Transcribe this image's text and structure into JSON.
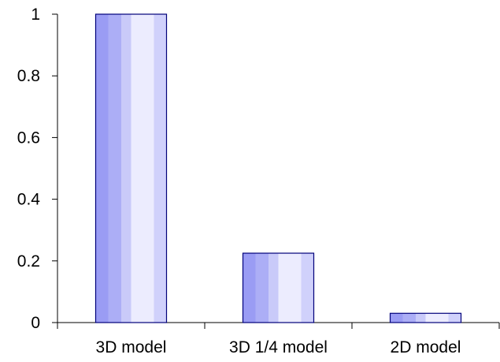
{
  "chart_data": {
    "type": "bar",
    "categories": [
      "3D model",
      "3D 1/4 model",
      "2D model"
    ],
    "values": [
      1.0,
      0.225,
      0.03
    ],
    "ylim": [
      0,
      1
    ],
    "yticks": [
      "0",
      "0.2",
      "0.4",
      "0.6",
      "0.8",
      "1"
    ],
    "title": "",
    "xlabel": "",
    "ylabel": "",
    "grid": false,
    "colors": {
      "bar_outline": "#00007a",
      "bar_gradient": [
        "#9a9cf4",
        "#b5b7f8",
        "#d2d3fb",
        "#ececfe",
        "#c9caf9"
      ]
    }
  }
}
